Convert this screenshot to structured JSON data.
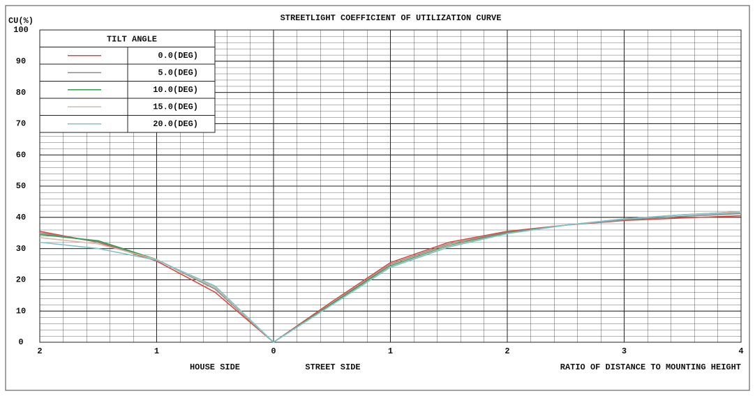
{
  "chart_data": {
    "type": "line",
    "title": "STREETLIGHT COEFFICIENT OF UTILIZATION CURVE",
    "ylabel": "CU(%)",
    "legend_title": "TILT ANGLE",
    "legend": "upper left",
    "grid": true,
    "annotations": [
      "HOUSE SIDE",
      "STREET SIDE",
      "RATIO OF DISTANCE TO MOUNTING HEIGHT"
    ],
    "x": [
      -2,
      -1.5,
      -1,
      -0.5,
      0,
      0.5,
      1,
      1.5,
      2,
      2.5,
      3,
      3.5,
      4
    ],
    "xlim": [
      -2,
      4
    ],
    "xticks": [
      {
        "value": -2,
        "label": "2"
      },
      {
        "value": -1,
        "label": "1"
      },
      0,
      1,
      2,
      3,
      4
    ],
    "ylim": [
      0,
      100
    ],
    "yticks": [
      0,
      10,
      20,
      30,
      40,
      50,
      60,
      70,
      80,
      90,
      100
    ],
    "series": [
      {
        "name": "0.0(DEG)",
        "color": "#e0453c",
        "values": [
          35.5,
          32,
          26,
          16,
          0,
          13,
          25.5,
          32,
          35.5,
          37.5,
          39,
          39.8,
          40.5
        ]
      },
      {
        "name": "5.0(DEG)",
        "color": "#8c8c8c",
        "values": [
          35,
          32.2,
          26.5,
          17,
          0,
          12.5,
          25,
          31.5,
          35.2,
          37.5,
          39.2,
          40.3,
          41.2
        ]
      },
      {
        "name": "10.0(DEG)",
        "color": "#2e9e4a",
        "values": [
          34.5,
          32.5,
          26.5,
          17.5,
          0,
          12.3,
          24.5,
          31,
          35,
          37.5,
          39.5,
          40.8,
          41.8
        ]
      },
      {
        "name": "15.0(DEG)",
        "color": "#d9b8a8",
        "values": [
          33.5,
          31.5,
          26.5,
          17.5,
          0,
          12,
          24.2,
          30.8,
          34.8,
          37.5,
          39.5,
          40.8,
          41.8
        ]
      },
      {
        "name": "20.0(DEG)",
        "color": "#7cc4cc",
        "values": [
          32,
          30,
          26.3,
          18,
          0,
          12,
          24,
          30.5,
          34.8,
          37.5,
          39.5,
          40.8,
          41.5
        ]
      }
    ]
  }
}
